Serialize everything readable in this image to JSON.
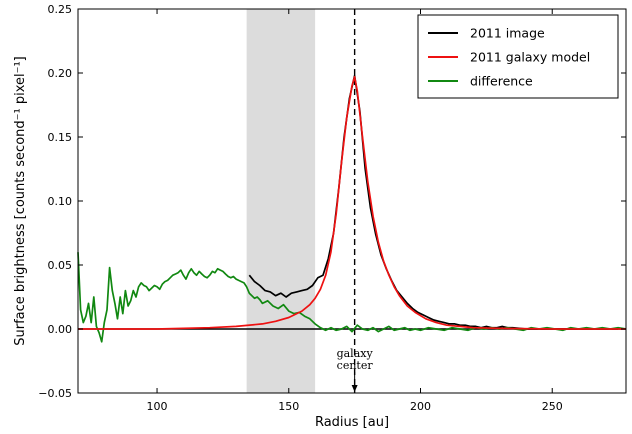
{
  "chart_data": {
    "type": "line",
    "xlabel": "Radius [au]",
    "ylabel": "Surface brightness [counts second⁻¹ pixel⁻¹]",
    "xlim": [
      70,
      278
    ],
    "ylim": [
      -0.05,
      0.25
    ],
    "xticks": [
      100,
      150,
      200,
      250
    ],
    "yticks": [
      -0.05,
      0.0,
      0.05,
      0.1,
      0.15,
      0.2,
      0.25
    ],
    "ytick_labels": [
      "−0.05",
      "0.00",
      "0.05",
      "0.10",
      "0.15",
      "0.20",
      "0.25"
    ],
    "grid": false,
    "legend_position": "top-right",
    "shaded_region": [
      134,
      160
    ],
    "vline_x": 175,
    "hline_y": 0,
    "annotation": {
      "text": [
        "galaxy",
        "center"
      ],
      "x": 175
    },
    "colors": {
      "image": "#000000",
      "model": "#ee1111",
      "difference": "#118811",
      "shade": "#dcdcdc"
    },
    "series": [
      {
        "name": "2011 image",
        "color": "#000000",
        "points": [
          [
            135,
            0.042
          ],
          [
            137,
            0.037
          ],
          [
            139,
            0.034
          ],
          [
            141,
            0.03
          ],
          [
            143,
            0.029
          ],
          [
            145,
            0.026
          ],
          [
            147,
            0.028
          ],
          [
            149,
            0.025
          ],
          [
            151,
            0.028
          ],
          [
            153,
            0.029
          ],
          [
            155,
            0.03
          ],
          [
            157,
            0.031
          ],
          [
            159,
            0.034
          ],
          [
            161,
            0.04
          ],
          [
            163,
            0.042
          ],
          [
            165,
            0.055
          ],
          [
            167,
            0.075
          ],
          [
            169,
            0.11
          ],
          [
            171,
            0.15
          ],
          [
            173,
            0.18
          ],
          [
            175,
            0.198
          ],
          [
            177,
            0.17
          ],
          [
            179,
            0.125
          ],
          [
            181,
            0.095
          ],
          [
            183,
            0.074
          ],
          [
            185,
            0.058
          ],
          [
            187,
            0.047
          ],
          [
            189,
            0.038
          ],
          [
            191,
            0.03
          ],
          [
            193,
            0.025
          ],
          [
            195,
            0.02
          ],
          [
            197,
            0.016
          ],
          [
            199,
            0.013
          ],
          [
            201,
            0.011
          ],
          [
            203,
            0.009
          ],
          [
            205,
            0.007
          ],
          [
            207,
            0.006
          ],
          [
            209,
            0.005
          ],
          [
            211,
            0.004
          ],
          [
            213,
            0.004
          ],
          [
            215,
            0.003
          ],
          [
            217,
            0.003
          ],
          [
            219,
            0.002
          ],
          [
            221,
            0.002
          ],
          [
            223,
            0.001
          ],
          [
            225,
            0.002
          ],
          [
            227,
            0.001
          ],
          [
            229,
            0.001
          ],
          [
            231,
            0.002
          ],
          [
            233,
            0.001
          ],
          [
            235,
            0.001
          ],
          [
            240,
            0.0
          ],
          [
            245,
            0.0
          ],
          [
            250,
            0.0
          ],
          [
            255,
            0.0
          ],
          [
            260,
            0.0
          ],
          [
            265,
            0.0
          ],
          [
            270,
            0.0
          ],
          [
            275,
            0.0
          ]
        ]
      },
      {
        "name": "2011 galaxy model",
        "color": "#ee1111",
        "points": [
          [
            70,
            0.0
          ],
          [
            100,
            0.0
          ],
          [
            120,
            0.001
          ],
          [
            130,
            0.002
          ],
          [
            140,
            0.004
          ],
          [
            145,
            0.006
          ],
          [
            150,
            0.009
          ],
          [
            155,
            0.014
          ],
          [
            158,
            0.019
          ],
          [
            160,
            0.024
          ],
          [
            162,
            0.031
          ],
          [
            164,
            0.042
          ],
          [
            166,
            0.06
          ],
          [
            168,
            0.09
          ],
          [
            170,
            0.13
          ],
          [
            172,
            0.165
          ],
          [
            174,
            0.19
          ],
          [
            175,
            0.197
          ],
          [
            176,
            0.186
          ],
          [
            178,
            0.15
          ],
          [
            180,
            0.115
          ],
          [
            182,
            0.088
          ],
          [
            184,
            0.068
          ],
          [
            186,
            0.053
          ],
          [
            188,
            0.042
          ],
          [
            190,
            0.033
          ],
          [
            192,
            0.026
          ],
          [
            195,
            0.018
          ],
          [
            198,
            0.013
          ],
          [
            202,
            0.008
          ],
          [
            206,
            0.005
          ],
          [
            210,
            0.003
          ],
          [
            215,
            0.002
          ],
          [
            220,
            0.001
          ],
          [
            230,
            0.0005
          ],
          [
            250,
            0.0
          ],
          [
            278,
            0.0
          ]
        ]
      },
      {
        "name": "difference",
        "color": "#118811",
        "points": [
          [
            70,
            0.06
          ],
          [
            71,
            0.015
          ],
          [
            72,
            0.005
          ],
          [
            73,
            0.01
          ],
          [
            74,
            0.02
          ],
          [
            75,
            0.005
          ],
          [
            76,
            0.025
          ],
          [
            77,
            0.002
          ],
          [
            78,
            -0.003
          ],
          [
            79,
            -0.01
          ],
          [
            80,
            0.005
          ],
          [
            81,
            0.015
          ],
          [
            82,
            0.048
          ],
          [
            83,
            0.03
          ],
          [
            84,
            0.02
          ],
          [
            85,
            0.008
          ],
          [
            86,
            0.025
          ],
          [
            87,
            0.012
          ],
          [
            88,
            0.03
          ],
          [
            89,
            0.018
          ],
          [
            90,
            0.022
          ],
          [
            91,
            0.03
          ],
          [
            92,
            0.025
          ],
          [
            93,
            0.033
          ],
          [
            94,
            0.036
          ],
          [
            95,
            0.034
          ],
          [
            96,
            0.033
          ],
          [
            97,
            0.03
          ],
          [
            98,
            0.032
          ],
          [
            99,
            0.034
          ],
          [
            100,
            0.033
          ],
          [
            101,
            0.031
          ],
          [
            102,
            0.035
          ],
          [
            103,
            0.037
          ],
          [
            104,
            0.038
          ],
          [
            105,
            0.04
          ],
          [
            106,
            0.042
          ],
          [
            107,
            0.043
          ],
          [
            108,
            0.044
          ],
          [
            109,
            0.046
          ],
          [
            110,
            0.042
          ],
          [
            111,
            0.039
          ],
          [
            112,
            0.044
          ],
          [
            113,
            0.047
          ],
          [
            114,
            0.044
          ],
          [
            115,
            0.042
          ],
          [
            116,
            0.045
          ],
          [
            117,
            0.043
          ],
          [
            118,
            0.041
          ],
          [
            119,
            0.04
          ],
          [
            120,
            0.042
          ],
          [
            121,
            0.045
          ],
          [
            122,
            0.044
          ],
          [
            123,
            0.047
          ],
          [
            124,
            0.046
          ],
          [
            125,
            0.045
          ],
          [
            126,
            0.043
          ],
          [
            127,
            0.041
          ],
          [
            128,
            0.04
          ],
          [
            129,
            0.041
          ],
          [
            130,
            0.039
          ],
          [
            131,
            0.038
          ],
          [
            132,
            0.037
          ],
          [
            133,
            0.036
          ],
          [
            134,
            0.033
          ],
          [
            135,
            0.028
          ],
          [
            136,
            0.026
          ],
          [
            137,
            0.024
          ],
          [
            138,
            0.025
          ],
          [
            139,
            0.023
          ],
          [
            140,
            0.02
          ],
          [
            142,
            0.022
          ],
          [
            144,
            0.018
          ],
          [
            146,
            0.016
          ],
          [
            148,
            0.019
          ],
          [
            150,
            0.014
          ],
          [
            152,
            0.012
          ],
          [
            154,
            0.013
          ],
          [
            156,
            0.01
          ],
          [
            158,
            0.008
          ],
          [
            160,
            0.004
          ],
          [
            162,
            0.001
          ],
          [
            164,
            -0.001
          ],
          [
            166,
            0.001
          ],
          [
            168,
            -0.001
          ],
          [
            170,
            0.0
          ],
          [
            172,
            0.002
          ],
          [
            174,
            -0.002
          ],
          [
            176,
            0.003
          ],
          [
            178,
            0.0
          ],
          [
            180,
            -0.001
          ],
          [
            182,
            0.001
          ],
          [
            184,
            -0.002
          ],
          [
            186,
            0.0
          ],
          [
            188,
            0.002
          ],
          [
            190,
            -0.001
          ],
          [
            192,
            0.0
          ],
          [
            194,
            0.001
          ],
          [
            196,
            -0.001
          ],
          [
            198,
            0.0
          ],
          [
            200,
            -0.001
          ],
          [
            203,
            0.001
          ],
          [
            206,
            0.0
          ],
          [
            209,
            -0.001
          ],
          [
            212,
            0.001
          ],
          [
            215,
            0.0
          ],
          [
            218,
            -0.001
          ],
          [
            221,
            0.001
          ],
          [
            224,
            0.0
          ],
          [
            227,
            0.001
          ],
          [
            230,
            0.0
          ],
          [
            233,
            0.001
          ],
          [
            236,
            0.0
          ],
          [
            239,
            -0.001
          ],
          [
            242,
            0.001
          ],
          [
            245,
            0.0
          ],
          [
            248,
            0.001
          ],
          [
            251,
            0.0
          ],
          [
            254,
            -0.001
          ],
          [
            257,
            0.001
          ],
          [
            260,
            0.0
          ],
          [
            263,
            0.001
          ],
          [
            266,
            0.0
          ],
          [
            269,
            0.001
          ],
          [
            272,
            0.0
          ],
          [
            275,
            0.001
          ],
          [
            278,
            0.0
          ]
        ]
      }
    ]
  }
}
